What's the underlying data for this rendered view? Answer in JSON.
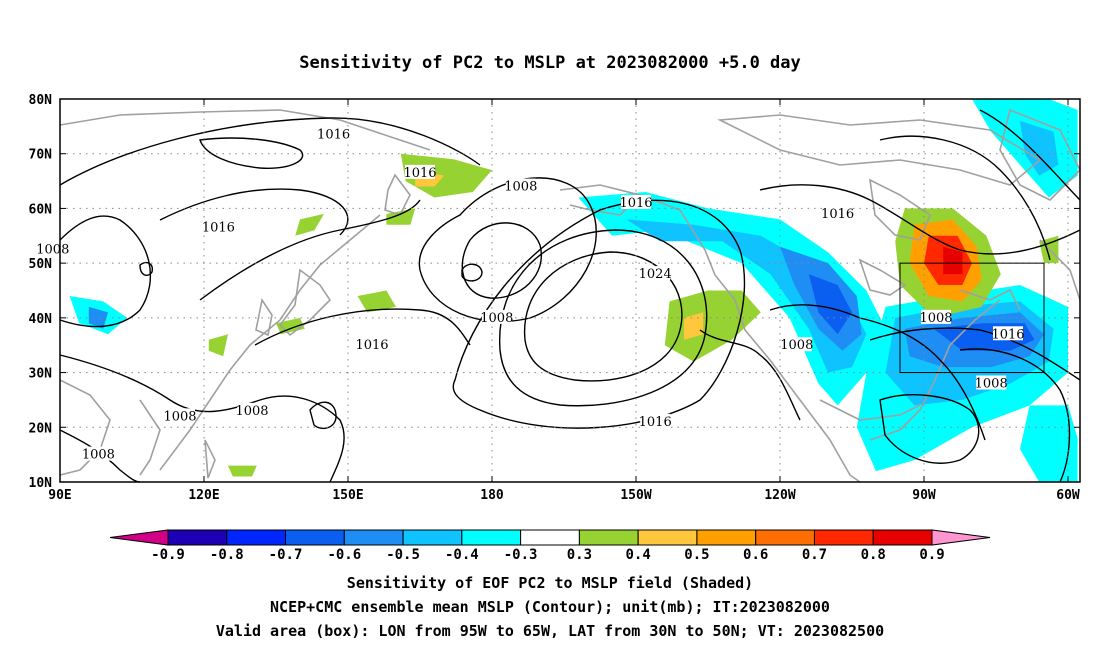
{
  "title": "Sensitivity of PC2 to MSLP at 2023082000 +5.0 day",
  "axes": {
    "lon_ticks": [
      "90E",
      "120E",
      "150E",
      "180",
      "150W",
      "120W",
      "90W",
      "60W"
    ],
    "lat_ticks": [
      "80N",
      "70N",
      "60N",
      "50N",
      "40N",
      "30N",
      "20N",
      "10N"
    ],
    "lon_range": [
      90,
      302.5
    ],
    "lat_range": [
      10,
      80
    ],
    "grid": "dotted"
  },
  "contour_labels": [
    {
      "text": "1016",
      "lon": 147,
      "lat": 73.5
    },
    {
      "text": "1016",
      "lon": 165,
      "lat": 66.5
    },
    {
      "text": "1016",
      "lon": 123,
      "lat": 56.5
    },
    {
      "text": "1008",
      "lon": 88.5,
      "lat": 52.5
    },
    {
      "text": "1008",
      "lon": 186,
      "lat": 64
    },
    {
      "text": "1016",
      "lon": 210,
      "lat": 61
    },
    {
      "text": "1016",
      "lon": 252,
      "lat": 59
    },
    {
      "text": "1024",
      "lon": 214,
      "lat": 48
    },
    {
      "text": "1008",
      "lon": 181,
      "lat": 40
    },
    {
      "text": "1016",
      "lon": 155,
      "lat": 35
    },
    {
      "text": "1008",
      "lon": 243.5,
      "lat": 35
    },
    {
      "text": "1008",
      "lon": 272.5,
      "lat": 40
    },
    {
      "text": "1016",
      "lon": 287.5,
      "lat": 37
    },
    {
      "text": "1008",
      "lon": 284,
      "lat": 28
    },
    {
      "text": "1016",
      "lon": 214,
      "lat": 21
    },
    {
      "text": "1008",
      "lon": 115,
      "lat": 22
    },
    {
      "text": "1008",
      "lon": 130,
      "lat": 23
    },
    {
      "text": "1008",
      "lon": 98,
      "lat": 15
    }
  ],
  "shaded_regions": [
    {
      "level": -0.4,
      "points": [
        [
          198,
          62
        ],
        [
          212,
          63
        ],
        [
          225,
          60
        ],
        [
          240,
          58
        ],
        [
          250,
          52
        ],
        [
          258,
          45
        ],
        [
          262,
          38
        ],
        [
          258,
          30
        ],
        [
          252,
          24
        ],
        [
          248,
          28
        ],
        [
          242,
          40
        ],
        [
          232,
          50
        ],
        [
          215,
          56
        ],
        [
          205,
          55
        ]
      ]
    },
    {
      "level": -0.5,
      "points": [
        [
          208,
          58
        ],
        [
          222,
          57
        ],
        [
          236,
          55
        ],
        [
          246,
          50
        ],
        [
          254,
          44
        ],
        [
          258,
          37
        ],
        [
          255,
          31
        ],
        [
          250,
          30
        ],
        [
          246,
          38
        ],
        [
          238,
          48
        ],
        [
          228,
          54
        ],
        [
          215,
          54
        ]
      ]
    },
    {
      "level": -0.6,
      "points": [
        [
          240,
          53
        ],
        [
          250,
          50
        ],
        [
          256,
          44
        ],
        [
          257,
          37
        ],
        [
          253,
          34
        ],
        [
          248,
          38
        ],
        [
          243,
          46
        ]
      ]
    },
    {
      "level": -0.7,
      "points": [
        [
          246,
          48
        ],
        [
          252,
          46
        ],
        [
          255,
          41
        ],
        [
          252,
          37
        ],
        [
          248,
          41
        ]
      ]
    },
    {
      "level": -0.4,
      "points": [
        [
          262,
          42
        ],
        [
          275,
          44
        ],
        [
          290,
          46
        ],
        [
          300,
          42
        ],
        [
          300,
          30
        ],
        [
          292,
          24
        ],
        [
          280,
          20
        ],
        [
          268,
          14
        ],
        [
          260,
          12
        ],
        [
          256,
          20
        ],
        [
          258,
          30
        ]
      ]
    },
    {
      "level": -0.5,
      "points": [
        [
          264,
          40
        ],
        [
          276,
          42
        ],
        [
          290,
          43
        ],
        [
          297,
          38
        ],
        [
          296,
          32
        ],
        [
          288,
          28
        ],
        [
          278,
          25
        ],
        [
          268,
          24
        ],
        [
          262,
          30
        ]
      ]
    },
    {
      "level": -0.6,
      "points": [
        [
          266,
          38
        ],
        [
          278,
          40
        ],
        [
          290,
          41
        ],
        [
          295,
          37
        ],
        [
          292,
          33
        ],
        [
          284,
          31
        ],
        [
          274,
          31
        ],
        [
          267,
          33
        ]
      ]
    },
    {
      "level": -0.7,
      "points": [
        [
          272,
          38
        ],
        [
          282,
          39
        ],
        [
          291,
          39
        ],
        [
          293,
          36
        ],
        [
          288,
          34
        ],
        [
          278,
          34
        ]
      ]
    },
    {
      "level": -0.4,
      "points": [
        [
          280,
          80
        ],
        [
          296,
          80
        ],
        [
          302,
          78
        ],
        [
          302,
          66
        ],
        [
          296,
          62
        ],
        [
          290,
          68
        ],
        [
          284,
          74
        ]
      ]
    },
    {
      "level": -0.5,
      "points": [
        [
          290,
          76
        ],
        [
          297,
          74
        ],
        [
          298,
          68
        ],
        [
          294,
          66
        ],
        [
          291,
          70
        ]
      ]
    },
    {
      "level": -0.4,
      "points": [
        [
          292,
          24
        ],
        [
          300,
          24
        ],
        [
          302,
          18
        ],
        [
          302,
          10
        ],
        [
          294,
          10
        ],
        [
          290,
          16
        ]
      ]
    },
    {
      "level": -0.4,
      "points": [
        [
          92,
          44
        ],
        [
          99,
          43
        ],
        [
          104,
          40
        ],
        [
          100,
          37
        ],
        [
          94,
          39
        ]
      ]
    },
    {
      "level": -0.6,
      "points": [
        [
          96,
          42
        ],
        [
          100,
          41
        ],
        [
          99,
          38
        ],
        [
          96,
          39
        ]
      ]
    },
    {
      "level": 0.3,
      "points": [
        [
          266,
          60
        ],
        [
          276,
          60
        ],
        [
          283,
          55
        ],
        [
          286,
          48
        ],
        [
          282,
          42
        ],
        [
          272,
          40
        ],
        [
          265,
          46
        ],
        [
          264,
          54
        ]
      ]
    },
    {
      "level": 0.5,
      "points": [
        [
          268,
          57
        ],
        [
          276,
          58
        ],
        [
          281,
          53
        ],
        [
          282,
          47
        ],
        [
          278,
          43
        ],
        [
          271,
          44
        ],
        [
          267,
          50
        ]
      ]
    },
    {
      "level": 0.7,
      "points": [
        [
          271,
          55
        ],
        [
          277,
          55
        ],
        [
          280,
          50
        ],
        [
          278,
          46
        ],
        [
          273,
          46
        ],
        [
          270,
          50
        ]
      ]
    },
    {
      "level": 0.8,
      "points": [
        [
          274,
          53
        ],
        [
          278,
          52
        ],
        [
          278,
          48
        ],
        [
          274,
          48
        ]
      ]
    },
    {
      "level": 0.3,
      "points": [
        [
          161,
          70
        ],
        [
          172,
          69
        ],
        [
          180,
          67
        ],
        [
          176,
          63
        ],
        [
          168,
          62
        ],
        [
          162,
          65
        ]
      ]
    },
    {
      "level": 0.4,
      "points": [
        [
          164,
          67
        ],
        [
          170,
          66
        ],
        [
          168,
          64
        ],
        [
          164,
          64
        ]
      ]
    },
    {
      "level": 0.3,
      "points": [
        [
          217,
          43
        ],
        [
          225,
          45
        ],
        [
          232,
          45
        ],
        [
          236,
          41
        ],
        [
          230,
          36
        ],
        [
          222,
          32
        ],
        [
          216,
          35
        ]
      ]
    },
    {
      "level": 0.4,
      "points": [
        [
          220,
          40
        ],
        [
          224,
          41
        ],
        [
          224,
          37
        ],
        [
          220,
          36
        ]
      ]
    },
    {
      "level": 0.3,
      "points": [
        [
          158,
          59
        ],
        [
          164,
          60
        ],
        [
          163,
          57
        ],
        [
          158,
          57
        ]
      ]
    },
    {
      "level": 0.3,
      "points": [
        [
          140,
          58
        ],
        [
          145,
          59
        ],
        [
          143,
          56
        ],
        [
          139,
          55
        ]
      ]
    },
    {
      "level": 0.3,
      "points": [
        [
          152,
          44
        ],
        [
          158,
          45
        ],
        [
          160,
          42
        ],
        [
          154,
          41
        ]
      ]
    },
    {
      "level": 0.3,
      "points": [
        [
          135,
          39
        ],
        [
          140,
          40
        ],
        [
          141,
          38
        ],
        [
          136,
          37
        ]
      ]
    },
    {
      "level": 0.3,
      "points": [
        [
          121,
          36
        ],
        [
          125,
          37
        ],
        [
          124,
          33
        ],
        [
          121,
          34
        ]
      ]
    },
    {
      "level": 0.3,
      "points": [
        [
          125,
          13
        ],
        [
          131,
          13
        ],
        [
          130,
          11
        ],
        [
          126,
          11
        ]
      ]
    },
    {
      "level": 0.3,
      "points": [
        [
          294,
          54
        ],
        [
          298,
          55
        ],
        [
          298,
          50
        ],
        [
          295,
          50
        ]
      ]
    }
  ],
  "valid_box": {
    "lon": [
      265,
      295
    ],
    "lat": [
      30,
      50
    ]
  },
  "colorbar": {
    "labels": [
      "-0.9",
      "-0.8",
      "-0.7",
      "-0.6",
      "-0.5",
      "-0.4",
      "-0.3",
      "0.3",
      "0.4",
      "0.5",
      "0.6",
      "0.7",
      "0.8",
      "0.9"
    ],
    "colors": [
      "#1e00b4",
      "#0026ff",
      "#0a5ff0",
      "#1e8ef5",
      "#0fc3ff",
      "#00ffff",
      "#ffffff",
      "#96d232",
      "#ffc83c",
      "#ffa000",
      "#ff6e00",
      "#ff2800",
      "#e60000"
    ],
    "under_color": "#d20087",
    "over_color": "#ff96d2"
  },
  "caption": [
    "Sensitivity of EOF PC2 to MSLP field (Shaded)",
    "NCEP+CMC ensemble mean MSLP (Contour); unit(mb); IT:2023082000",
    "Valid area (box): LON from 95W to 65W, LAT from 30N to 50N; VT: 2023082500"
  ]
}
